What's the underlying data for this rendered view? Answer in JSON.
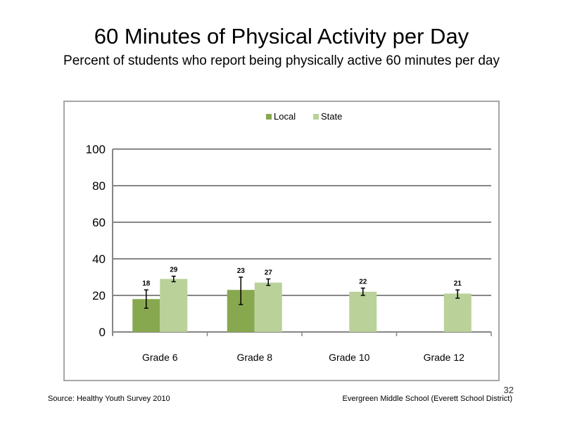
{
  "slide": {
    "title": "60 Minutes of Physical Activity per Day",
    "subtitle": "Percent of students who report being physically active 60 minutes per day",
    "source": "Source: Healthy Youth Survey 2010",
    "school": "Evergreen Middle School (Everett School District)",
    "page_number": "32"
  },
  "chart_data": {
    "type": "bar",
    "categories": [
      "Grade 6",
      "Grade 8",
      "Grade 10",
      "Grade 12"
    ],
    "series": [
      {
        "name": "Local",
        "color": "#88a84f",
        "values": [
          18,
          23,
          null,
          null
        ],
        "labels": [
          "18",
          "23",
          "",
          ""
        ],
        "error_low": [
          13,
          15,
          null,
          null
        ],
        "error_high": [
          23,
          30,
          null,
          null
        ]
      },
      {
        "name": "State",
        "color": "#bad19a",
        "values": [
          29,
          27,
          22,
          21
        ],
        "labels": [
          "29",
          "27",
          "22",
          "21"
        ],
        "error_low": [
          27.5,
          25.5,
          20,
          18.5
        ],
        "error_high": [
          30.5,
          29,
          24,
          23
        ]
      }
    ],
    "ylim": [
      0,
      100
    ],
    "yticks": [
      "0",
      "20",
      "40",
      "60",
      "80",
      "100"
    ],
    "ytick_values": [
      0,
      20,
      40,
      60,
      80,
      100
    ],
    "grid": true,
    "legend_position": "top-center",
    "gridline_color": "#868686"
  }
}
